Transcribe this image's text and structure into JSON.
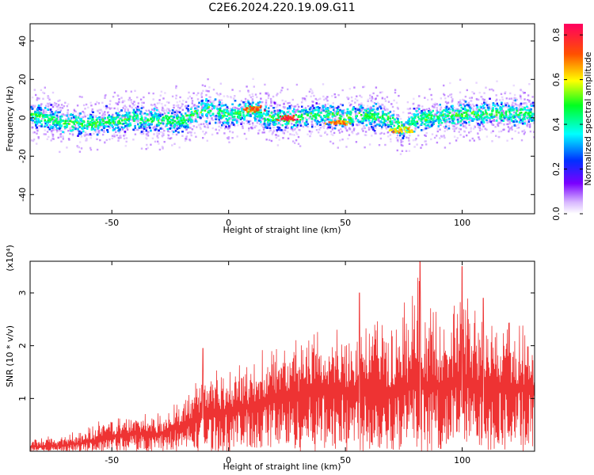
{
  "chart_data": [
    {
      "type": "heatmap",
      "title": "C2E6.2024.220.19.09.G11",
      "xlabel": "Height of straight line (km)",
      "ylabel": "Frequency (Hz)",
      "xlim": [
        -85,
        131
      ],
      "ylim": [
        -50,
        49
      ],
      "xticks": [
        -50,
        0,
        50,
        100
      ],
      "yticks": [
        -40,
        -20,
        0,
        20,
        40
      ],
      "colorbar": {
        "label": "Normalized spectral amplitude",
        "range": [
          0.0,
          0.85
        ],
        "ticks": [
          "0.0",
          "0.2",
          "0.4",
          "0.6",
          "0.8"
        ]
      },
      "ridge": {
        "x": [
          -85,
          -70,
          -60,
          -50,
          -40,
          -30,
          -20,
          -12,
          -5,
          0,
          5,
          10,
          15,
          20,
          25,
          30,
          40,
          50,
          60,
          70,
          75,
          80,
          90,
          100,
          110,
          120,
          131
        ],
        "y": [
          2,
          -2,
          -3,
          -1,
          0,
          -1,
          -1,
          5,
          4,
          1,
          3,
          5,
          1,
          0,
          0,
          1,
          2,
          1,
          2,
          -1,
          -6,
          0,
          1,
          2,
          3,
          3,
          2
        ]
      },
      "hotspots": [
        {
          "x": 25,
          "y": 0,
          "amplitude": 0.85
        },
        {
          "x": 10,
          "y": 5,
          "amplitude": 0.8
        },
        {
          "x": 47,
          "y": -2,
          "amplitude": 0.75
        },
        {
          "x": 74,
          "y": -6,
          "amplitude": 0.7
        }
      ]
    },
    {
      "type": "line",
      "xlabel": "Height of straight line (km)",
      "ylabel": "SNR (10 * v/v)",
      "yunit": "(x10⁴)",
      "color": "#ee3333",
      "xlim": [
        -85,
        131
      ],
      "ylim": [
        0,
        3.6
      ],
      "xticks": [
        -50,
        0,
        50,
        100
      ],
      "yticks": [
        1,
        2,
        3
      ],
      "envelope": {
        "x": [
          -85,
          -70,
          -60,
          -50,
          -40,
          -30,
          -20,
          -10,
          0,
          10,
          20,
          30,
          40,
          50,
          60,
          70,
          80,
          90,
          100,
          110,
          120,
          131
        ],
        "upper": [
          0.25,
          0.35,
          0.5,
          0.7,
          0.75,
          0.8,
          1.0,
          1.8,
          1.6,
          1.9,
          2.3,
          2.2,
          2.5,
          2.6,
          2.9,
          2.6,
          3.6,
          2.7,
          3.5,
          2.8,
          2.7,
          2.4
        ],
        "mean": [
          0.08,
          0.12,
          0.18,
          0.3,
          0.35,
          0.35,
          0.5,
          0.75,
          0.8,
          0.9,
          1.1,
          1.1,
          1.2,
          1.2,
          1.3,
          1.2,
          1.35,
          1.3,
          1.4,
          1.3,
          1.3,
          1.2
        ]
      },
      "peaks": [
        {
          "x": 82,
          "y": 3.6
        },
        {
          "x": 100,
          "y": 3.5
        },
        {
          "x": 56,
          "y": 3.0
        },
        {
          "x": -11,
          "y": 1.95
        },
        {
          "x": 109,
          "y": 2.9
        }
      ]
    }
  ]
}
